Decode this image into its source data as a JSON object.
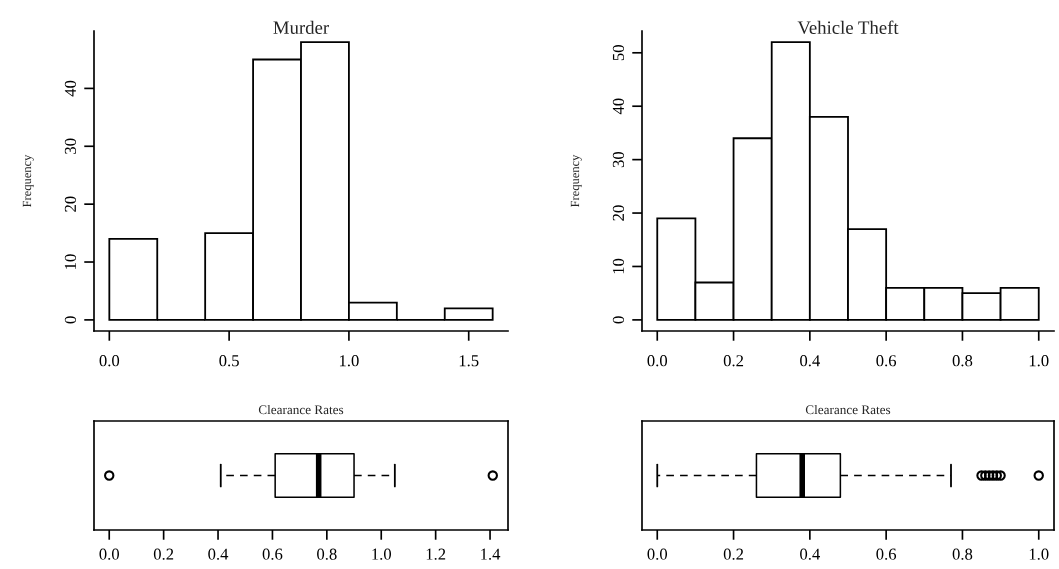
{
  "chart_data": [
    {
      "type": "histogram",
      "title": "Murder",
      "ylabel": "Frequency",
      "bins": [
        0,
        0.2,
        0.4,
        0.6,
        0.8,
        1.0,
        1.2,
        1.4,
        1.6
      ],
      "values": [
        14,
        0,
        15,
        45,
        48,
        3,
        0,
        2
      ],
      "xlim": [
        -0.064,
        1.664
      ],
      "xticks": [
        {
          "value": 0,
          "label": "0.0"
        },
        {
          "value": 0.5,
          "label": "0.5"
        },
        {
          "value": 1.0,
          "label": "1.0"
        },
        {
          "value": 1.5,
          "label": "1.5"
        }
      ],
      "ylim": [
        -1.92,
        49.92
      ],
      "yticks": [
        0,
        10,
        20,
        30,
        40
      ],
      "grid": false
    },
    {
      "type": "histogram",
      "title": "Vehicle Theft",
      "ylabel": "Frequency",
      "bins": [
        0,
        0.1,
        0.2,
        0.3,
        0.4,
        0.5,
        0.6,
        0.7,
        0.8,
        0.9,
        1.0
      ],
      "values": [
        19,
        7,
        34,
        52,
        38,
        17,
        6,
        6,
        5,
        6
      ],
      "xlim": [
        -0.04,
        1.04
      ],
      "xticks": [
        {
          "value": 0,
          "label": "0.0"
        },
        {
          "value": 0.2,
          "label": "0.2"
        },
        {
          "value": 0.4,
          "label": "0.4"
        },
        {
          "value": 0.6,
          "label": "0.6"
        },
        {
          "value": 0.8,
          "label": "0.8"
        },
        {
          "value": 1.0,
          "label": "1.0"
        }
      ],
      "ylim": [
        -2.08,
        54.08
      ],
      "yticks": [
        0,
        10,
        20,
        30,
        40,
        50
      ],
      "grid": false
    },
    {
      "type": "box",
      "title": "Clearance Rates",
      "orientation": "horizontal",
      "categories": [
        null
      ],
      "boxes": [
        {
          "low": 0.41,
          "q1": 0.61,
          "median": 0.77,
          "q3": 0.9,
          "high": 1.05,
          "outliers": [
            0,
            1.41
          ]
        }
      ],
      "xlim": [
        -0.056,
        1.466
      ],
      "xticks": [
        {
          "value": 0,
          "label": "0.0"
        },
        {
          "value": 0.2,
          "label": "0.2"
        },
        {
          "value": 0.4,
          "label": "0.4"
        },
        {
          "value": 0.6,
          "label": "0.6"
        },
        {
          "value": 0.8,
          "label": "0.8"
        },
        {
          "value": 1.0,
          "label": "1.0"
        },
        {
          "value": 1.2,
          "label": "1.2"
        },
        {
          "value": 1.4,
          "label": "1.4"
        }
      ],
      "grid": false
    },
    {
      "type": "box",
      "title": "Clearance Rates",
      "orientation": "horizontal",
      "categories": [
        null
      ],
      "boxes": [
        {
          "low": 0,
          "q1": 0.26,
          "median": 0.38,
          "q3": 0.48,
          "high": 0.77,
          "outliers": [
            0.85,
            0.86,
            0.87,
            0.88,
            0.89,
            0.9,
            1.0
          ]
        }
      ],
      "xlim": [
        -0.04,
        1.04
      ],
      "xticks": [
        {
          "value": 0,
          "label": "0.0"
        },
        {
          "value": 0.2,
          "label": "0.2"
        },
        {
          "value": 0.4,
          "label": "0.4"
        },
        {
          "value": 0.6,
          "label": "0.6"
        },
        {
          "value": 0.8,
          "label": "0.8"
        },
        {
          "value": 1.0,
          "label": "1.0"
        }
      ],
      "grid": false
    }
  ]
}
